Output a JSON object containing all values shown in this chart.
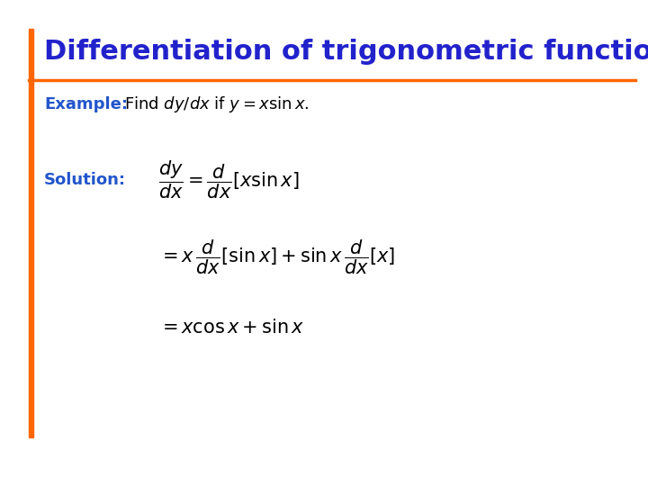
{
  "title": "Differentiation of trigonometric functions",
  "title_color": "#2222CC",
  "accent_color": "#FF6600",
  "example_label": "Example:",
  "example_label_color": "#2255CC",
  "example_text": "Find $dy/dx$ if $y = x \\sin x.$",
  "solution_label": "Solution:",
  "solution_label_color": "#2255CC",
  "eq1": "$\\dfrac{dy}{dx} = \\dfrac{d}{dx}[x \\sin x]$",
  "eq2": "$= x\\,\\dfrac{d}{dx}[\\sin x] + \\sin x\\,\\dfrac{d}{dx}[x]$",
  "eq3": "$= x \\cos x + \\sin x$",
  "bg_color": "#FFFFFF",
  "text_color": "#000000",
  "left_bar_color": "#FF6600",
  "title_fontsize": 22,
  "label_fontsize": 13,
  "eq_fontsize": 15
}
